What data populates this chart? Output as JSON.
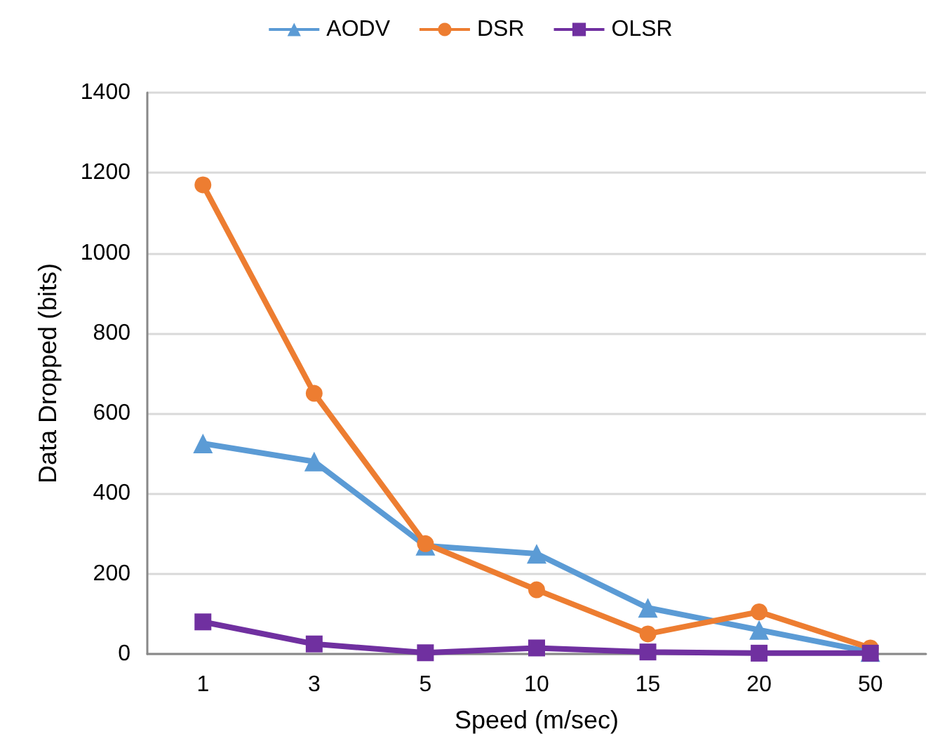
{
  "chart_data": {
    "type": "line",
    "xlabel": "Speed (m/sec)",
    "ylabel": "Data Dropped (bits)",
    "categories": [
      "1",
      "3",
      "5",
      "10",
      "15",
      "20",
      "50"
    ],
    "series": [
      {
        "name": "AODV",
        "color": "#5b9bd5",
        "marker": "triangle",
        "values": [
          525,
          480,
          270,
          250,
          115,
          60,
          5
        ]
      },
      {
        "name": "DSR",
        "color": "#ed7d31",
        "marker": "circle",
        "values": [
          1170,
          650,
          275,
          160,
          50,
          105,
          15
        ]
      },
      {
        "name": "OLSR",
        "color": "#7030a0",
        "marker": "square",
        "values": [
          80,
          25,
          3,
          15,
          5,
          2,
          2
        ]
      }
    ],
    "ylim": [
      0,
      1400
    ],
    "yticks": [
      0,
      200,
      400,
      600,
      800,
      1000,
      1200,
      1400
    ],
    "grid": "y",
    "legend": "top"
  }
}
